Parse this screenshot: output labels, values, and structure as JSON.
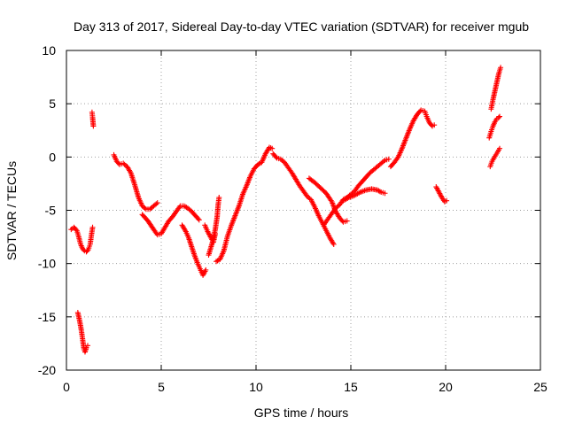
{
  "chart_data": {
    "type": "scatter",
    "title": "Day 313 of 2017, Sidereal Day-to-day VTEC variation (SDTVAR) for receiver mgub",
    "xlabel": "GPS time / hours",
    "ylabel": "SDTVAR / TECUs",
    "xlim": [
      0,
      25
    ],
    "ylim": [
      -20,
      10
    ],
    "xticks": [
      0,
      5,
      10,
      15,
      20,
      25
    ],
    "yticks": [
      -20,
      -15,
      -10,
      -5,
      0,
      5,
      10
    ],
    "xtick_labels": [
      "0",
      "5",
      "10",
      "15",
      "20",
      "25"
    ],
    "ytick_labels": [
      "-20",
      "-15",
      "-10",
      "-5",
      "0",
      "5",
      "10"
    ],
    "grid": true,
    "marker": "+",
    "series": [
      {
        "color": "#ff0000",
        "segments": [
          [
            [
              0.25,
              -6.8
            ],
            [
              0.4,
              -6.6
            ],
            [
              0.55,
              -6.9
            ],
            [
              0.65,
              -7.5
            ],
            [
              0.75,
              -8.2
            ],
            [
              0.85,
              -8.6
            ],
            [
              0.95,
              -8.8
            ],
            [
              1.05,
              -8.9
            ],
            [
              1.15,
              -8.7
            ],
            [
              1.25,
              -8.2
            ],
            [
              1.32,
              -7.3
            ],
            [
              1.38,
              -6.6
            ]
          ],
          [
            [
              0.6,
              -14.6
            ],
            [
              0.7,
              -15.4
            ],
            [
              0.78,
              -16.2
            ],
            [
              0.86,
              -17.2
            ],
            [
              0.92,
              -18.0
            ],
            [
              0.98,
              -18.3
            ],
            [
              1.05,
              -17.9
            ],
            [
              1.12,
              -17.7
            ]
          ],
          [
            [
              1.35,
              4.2
            ],
            [
              1.38,
              3.7
            ],
            [
              1.4,
              3.3
            ],
            [
              1.42,
              2.9
            ]
          ],
          [
            [
              2.5,
              0.2
            ],
            [
              2.65,
              -0.4
            ],
            [
              2.8,
              -0.7
            ],
            [
              3.0,
              -0.6
            ],
            [
              3.2,
              -0.9
            ],
            [
              3.4,
              -1.5
            ],
            [
              3.6,
              -2.6
            ],
            [
              3.8,
              -3.8
            ],
            [
              4.0,
              -4.6
            ],
            [
              4.2,
              -4.9
            ],
            [
              4.4,
              -4.9
            ],
            [
              4.6,
              -4.6
            ],
            [
              4.8,
              -4.3
            ]
          ],
          [
            [
              4.0,
              -5.4
            ],
            [
              4.3,
              -6.0
            ],
            [
              4.6,
              -6.8
            ],
            [
              4.8,
              -7.3
            ],
            [
              5.0,
              -7.2
            ],
            [
              5.2,
              -6.6
            ],
            [
              5.4,
              -6.0
            ],
            [
              5.6,
              -5.6
            ],
            [
              5.8,
              -5.1
            ],
            [
              6.0,
              -4.6
            ],
            [
              6.2,
              -4.6
            ],
            [
              6.4,
              -4.8
            ],
            [
              6.6,
              -5.1
            ],
            [
              6.8,
              -5.5
            ],
            [
              7.0,
              -5.9
            ]
          ],
          [
            [
              6.1,
              -6.4
            ],
            [
              6.3,
              -7.0
            ],
            [
              6.45,
              -7.6
            ],
            [
              6.6,
              -8.4
            ],
            [
              6.75,
              -9.2
            ],
            [
              6.9,
              -9.9
            ],
            [
              7.05,
              -10.5
            ],
            [
              7.2,
              -11.1
            ],
            [
              7.35,
              -10.6
            ]
          ],
          [
            [
              7.3,
              -6.4
            ],
            [
              7.45,
              -7.0
            ],
            [
              7.6,
              -7.5
            ],
            [
              7.75,
              -8.0
            ],
            [
              7.85,
              -7.2
            ]
          ],
          [
            [
              7.5,
              -9.2
            ],
            [
              7.7,
              -8.0
            ],
            [
              7.85,
              -6.8
            ],
            [
              7.95,
              -5.6
            ],
            [
              8.0,
              -4.5
            ],
            [
              8.05,
              -3.8
            ]
          ],
          [
            [
              7.9,
              -9.8
            ],
            [
              8.1,
              -9.6
            ],
            [
              8.3,
              -8.8
            ],
            [
              8.5,
              -7.4
            ],
            [
              8.7,
              -6.4
            ],
            [
              8.9,
              -5.5
            ],
            [
              9.1,
              -4.6
            ],
            [
              9.3,
              -3.5
            ],
            [
              9.5,
              -2.7
            ],
            [
              9.7,
              -1.8
            ],
            [
              9.9,
              -1.1
            ],
            [
              10.1,
              -0.7
            ],
            [
              10.3,
              -0.5
            ],
            [
              10.5,
              0.3
            ],
            [
              10.7,
              0.9
            ],
            [
              10.85,
              0.8
            ]
          ],
          [
            [
              10.9,
              0.3
            ],
            [
              11.1,
              -0.1
            ],
            [
              11.3,
              -0.2
            ],
            [
              11.5,
              -0.5
            ],
            [
              11.7,
              -1.0
            ],
            [
              11.9,
              -1.5
            ],
            [
              12.1,
              -2.1
            ],
            [
              12.3,
              -2.7
            ],
            [
              12.5,
              -3.2
            ],
            [
              12.7,
              -3.7
            ],
            [
              12.9,
              -4.0
            ],
            [
              13.1,
              -4.7
            ],
            [
              13.3,
              -5.5
            ],
            [
              13.5,
              -6.2
            ],
            [
              13.7,
              -6.9
            ],
            [
              13.9,
              -7.6
            ],
            [
              14.1,
              -8.2
            ]
          ],
          [
            [
              12.8,
              -2.0
            ],
            [
              13.1,
              -2.4
            ],
            [
              13.4,
              -2.9
            ],
            [
              13.7,
              -3.4
            ],
            [
              14.0,
              -4.2
            ],
            [
              14.2,
              -5.1
            ],
            [
              14.4,
              -5.7
            ],
            [
              14.6,
              -6.1
            ],
            [
              14.8,
              -6.0
            ]
          ],
          [
            [
              13.6,
              -6.3
            ],
            [
              13.8,
              -5.8
            ],
            [
              14.0,
              -5.3
            ],
            [
              14.2,
              -4.8
            ],
            [
              14.4,
              -4.5
            ],
            [
              14.6,
              -4.0
            ],
            [
              14.8,
              -3.8
            ],
            [
              15.0,
              -3.5
            ],
            [
              15.2,
              -3.2
            ],
            [
              15.4,
              -2.7
            ],
            [
              15.6,
              -2.3
            ],
            [
              15.8,
              -1.9
            ],
            [
              16.0,
              -1.5
            ],
            [
              16.2,
              -1.2
            ],
            [
              16.4,
              -0.9
            ],
            [
              16.6,
              -0.6
            ],
            [
              16.8,
              -0.3
            ],
            [
              17.0,
              -0.2
            ]
          ],
          [
            [
              14.6,
              -4.1
            ],
            [
              14.9,
              -3.8
            ],
            [
              15.2,
              -3.6
            ],
            [
              15.5,
              -3.3
            ],
            [
              15.8,
              -3.1
            ],
            [
              16.1,
              -3.0
            ],
            [
              16.4,
              -3.1
            ],
            [
              16.6,
              -3.3
            ],
            [
              16.8,
              -3.4
            ]
          ],
          [
            [
              17.1,
              -0.9
            ],
            [
              17.3,
              -0.5
            ],
            [
              17.5,
              0.0
            ],
            [
              17.7,
              0.8
            ],
            [
              17.9,
              1.7
            ],
            [
              18.1,
              2.6
            ],
            [
              18.3,
              3.4
            ],
            [
              18.5,
              4.0
            ],
            [
              18.7,
              4.4
            ],
            [
              18.9,
              4.3
            ],
            [
              19.0,
              3.8
            ],
            [
              19.15,
              3.2
            ],
            [
              19.3,
              2.9
            ],
            [
              19.4,
              3.0
            ]
          ],
          [
            [
              19.5,
              -2.8
            ],
            [
              19.65,
              -3.3
            ],
            [
              19.8,
              -3.8
            ],
            [
              19.95,
              -4.2
            ],
            [
              20.05,
              -4.1
            ]
          ],
          [
            [
              22.35,
              -0.9
            ],
            [
              22.45,
              -0.4
            ],
            [
              22.55,
              -0.1
            ],
            [
              22.65,
              0.2
            ],
            [
              22.75,
              0.5
            ],
            [
              22.85,
              0.8
            ]
          ],
          [
            [
              22.3,
              1.8
            ],
            [
              22.4,
              2.4
            ],
            [
              22.5,
              2.9
            ],
            [
              22.6,
              3.3
            ],
            [
              22.7,
              3.6
            ],
            [
              22.8,
              3.7
            ],
            [
              22.85,
              3.8
            ]
          ],
          [
            [
              22.4,
              4.5
            ],
            [
              22.5,
              5.4
            ],
            [
              22.6,
              6.2
            ],
            [
              22.7,
              7.0
            ],
            [
              22.8,
              7.8
            ],
            [
              22.9,
              8.4
            ]
          ]
        ]
      }
    ]
  }
}
